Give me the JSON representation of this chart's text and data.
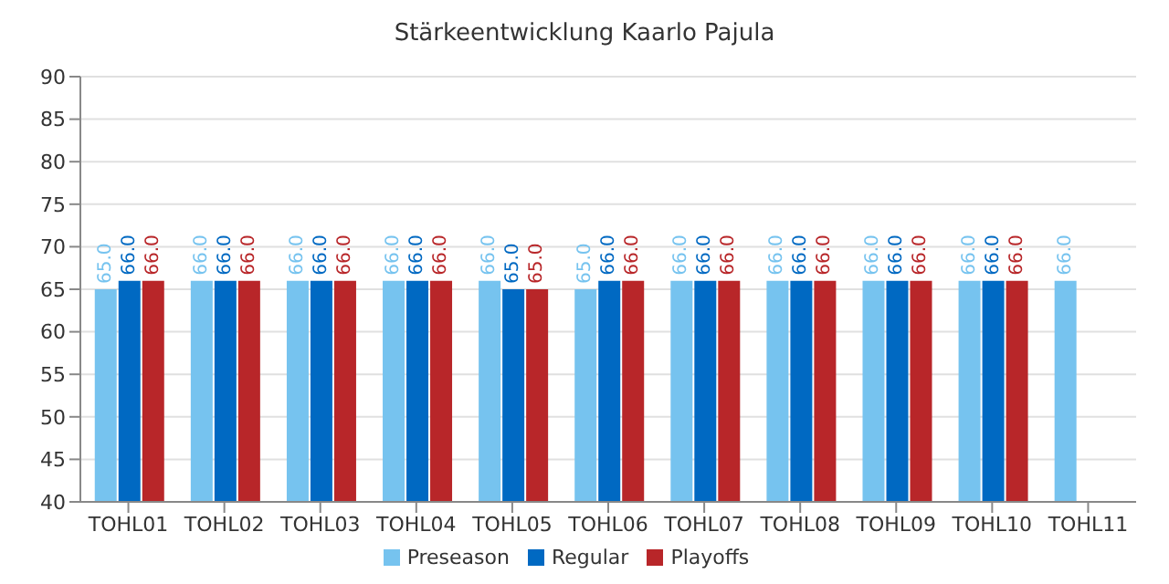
{
  "chart_data": {
    "type": "bar",
    "title": "Stärkeentwicklung Kaarlo Pajula",
    "categories": [
      "TOHL01",
      "TOHL02",
      "TOHL03",
      "TOHL04",
      "TOHL05",
      "TOHL06",
      "TOHL07",
      "TOHL08",
      "TOHL09",
      "TOHL10",
      "TOHL11"
    ],
    "series": [
      {
        "name": "Preseason",
        "color": "#76c3ef",
        "values": [
          65,
          66,
          66,
          66,
          66,
          65,
          66,
          66,
          66,
          66,
          66
        ],
        "value_labels": [
          "65.0",
          "66.0",
          "66.0",
          "66.0",
          "66.0",
          "65.0",
          "66.0",
          "66.0",
          "66.0",
          "66.0",
          "66.0"
        ]
      },
      {
        "name": "Regular",
        "color": "#0069c2",
        "values": [
          66,
          66,
          66,
          66,
          65,
          66,
          66,
          66,
          66,
          66,
          null
        ],
        "value_labels": [
          "66.0",
          "66.0",
          "66.0",
          "66.0",
          "65.0",
          "66.0",
          "66.0",
          "66.0",
          "66.0",
          "66.0",
          null
        ]
      },
      {
        "name": "Playoffs",
        "color": "#b82629",
        "values": [
          66,
          66,
          66,
          66,
          65,
          66,
          66,
          66,
          66,
          66,
          null
        ],
        "value_labels": [
          "66.0",
          "66.0",
          "66.0",
          "66.0",
          "65.0",
          "66.0",
          "66.0",
          "66.0",
          "66.0",
          "66.0",
          null
        ]
      }
    ],
    "ylim": [
      40,
      90
    ],
    "yticks": [
      40,
      45,
      50,
      55,
      60,
      65,
      70,
      75,
      80,
      85,
      90
    ],
    "grid": "y",
    "legend": "bottom",
    "marker": "square"
  }
}
